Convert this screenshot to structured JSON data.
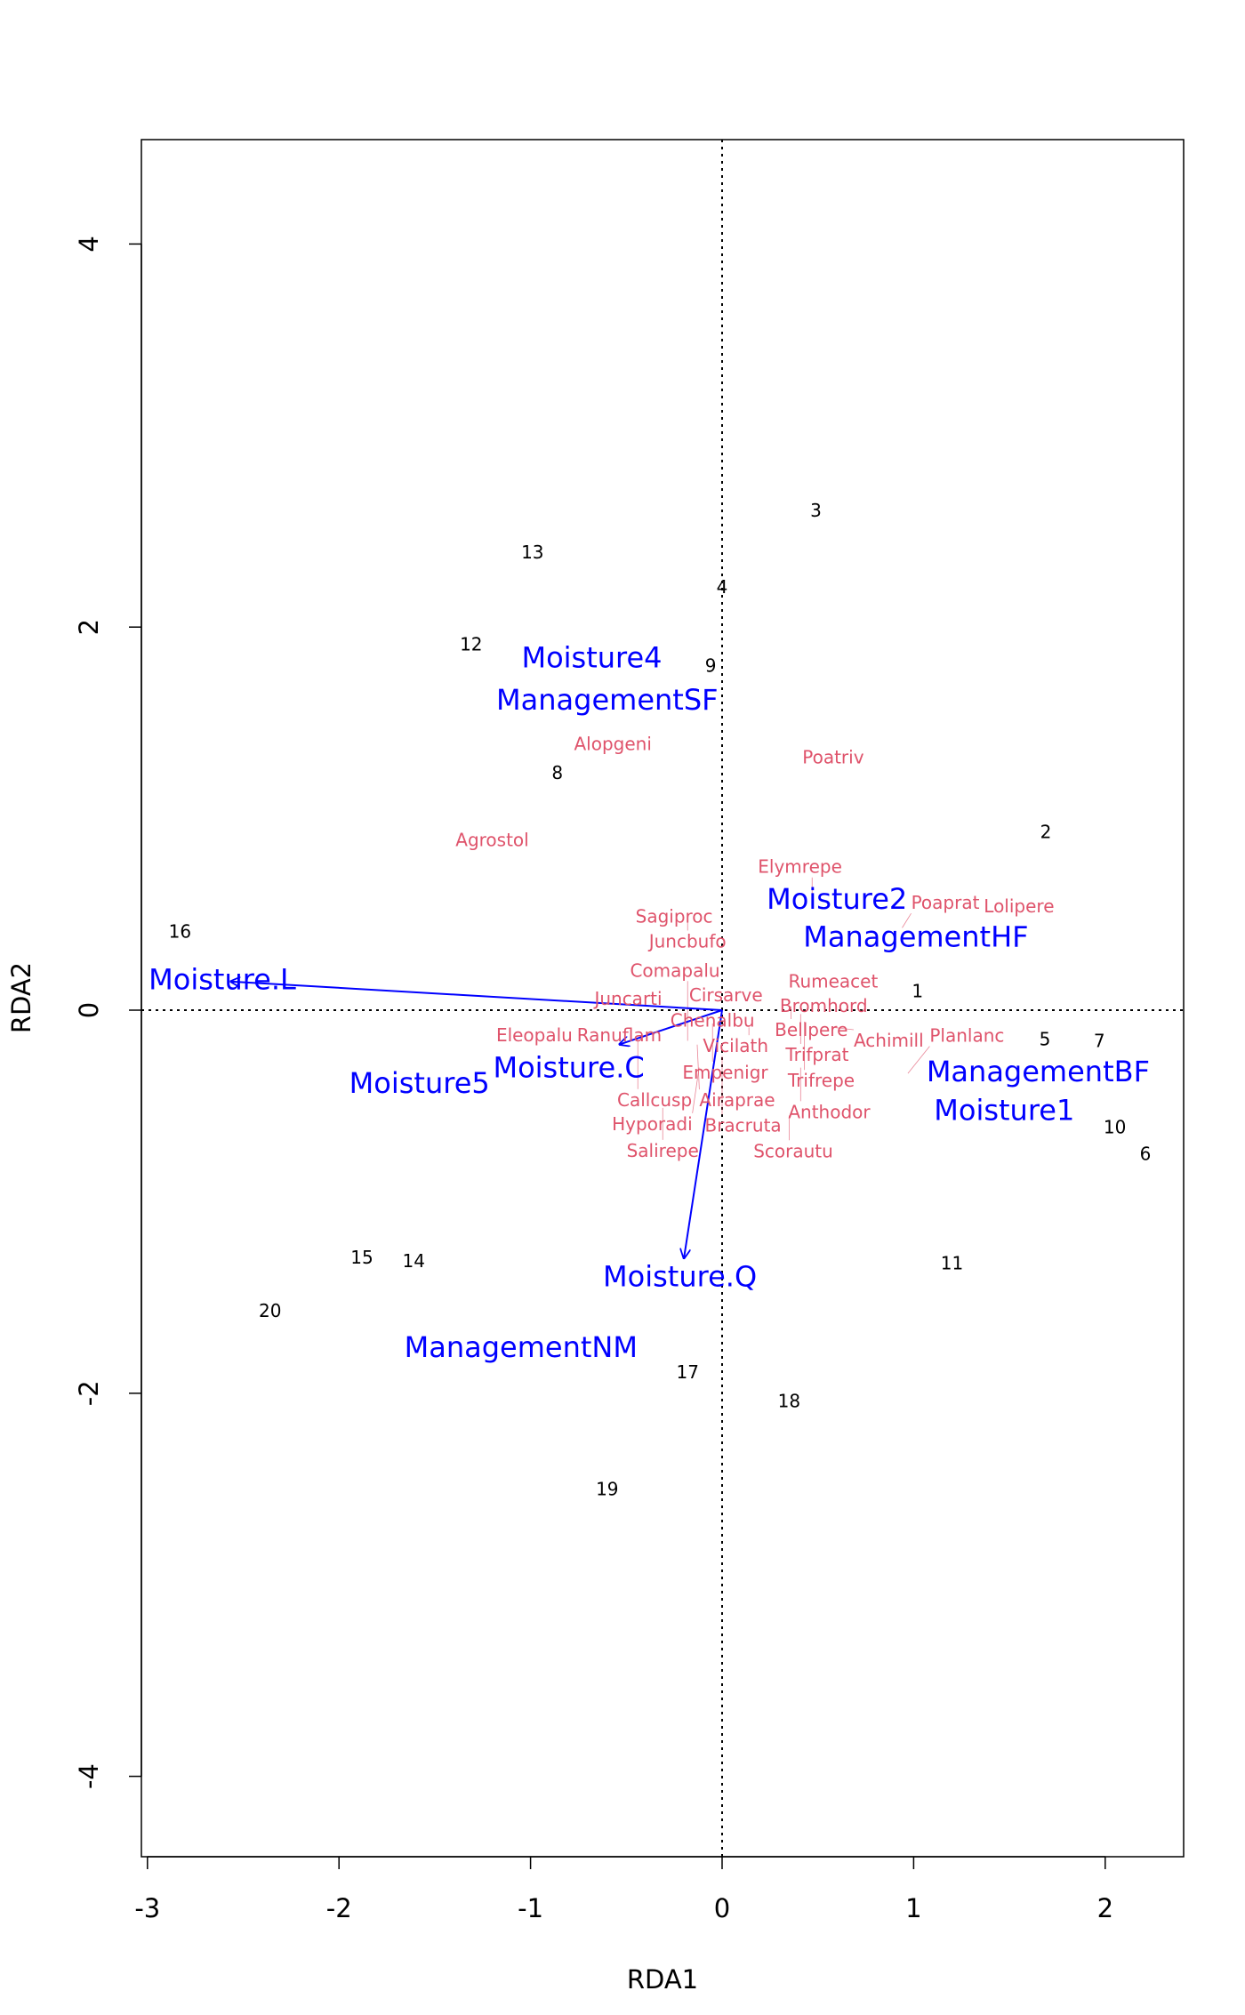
{
  "chart_data": {
    "type": "scatter",
    "title": "",
    "xlabel": "RDA1",
    "ylabel": "RDA2",
    "xlim": [
      -3.03,
      2.42
    ],
    "ylim": [
      -4.45,
      4.49
    ],
    "xticks": [
      -3,
      -2,
      -1,
      0,
      1,
      2
    ],
    "yticks": [
      -4,
      -2,
      0,
      2,
      4
    ],
    "grid": false,
    "colors": {
      "sites": "#000000",
      "species": "#DF536B",
      "constraints": "#0000FF"
    },
    "sites": [
      {
        "label": "1",
        "x": 1.02,
        "y": 0.1
      },
      {
        "label": "2",
        "x": 1.69,
        "y": 0.93
      },
      {
        "label": "3",
        "x": 0.49,
        "y": 2.61
      },
      {
        "label": "4",
        "x": 0.0,
        "y": 2.21
      },
      {
        "label": "5",
        "x": 1.72,
        "y": -0.2
      },
      {
        "label": "6",
        "x": 2.21,
        "y": -0.75
      },
      {
        "label": "7",
        "x": 1.97,
        "y": -0.16
      },
      {
        "label": "8",
        "x": -0.86,
        "y": 1.24
      },
      {
        "label": "9",
        "x": -0.06,
        "y": 1.8
      },
      {
        "label": "10",
        "x": 2.05,
        "y": -0.61
      },
      {
        "label": "11",
        "x": 1.2,
        "y": -1.32
      },
      {
        "label": "12",
        "x": -1.31,
        "y": 1.91
      },
      {
        "label": "13",
        "x": -0.99,
        "y": 2.39
      },
      {
        "label": "14",
        "x": -1.61,
        "y": -1.31
      },
      {
        "label": "15",
        "x": -1.88,
        "y": -1.29
      },
      {
        "label": "16",
        "x": -2.83,
        "y": 0.41
      },
      {
        "label": "17",
        "x": -0.18,
        "y": -1.89
      },
      {
        "label": "18",
        "x": 0.35,
        "y": -2.04
      },
      {
        "label": "19",
        "x": -0.6,
        "y": -2.5
      },
      {
        "label": "20",
        "x": -2.36,
        "y": -1.57
      }
    ],
    "species": [
      {
        "label": "Alopgeni",
        "x": -0.57,
        "y": 1.39
      },
      {
        "label": "Poatriv",
        "x": 0.58,
        "y": 1.32
      },
      {
        "label": "Agrostol",
        "x": -1.2,
        "y": 0.89
      },
      {
        "label": "Sagiproc",
        "x": -0.25,
        "y": 0.49
      },
      {
        "label": "Juncbufo",
        "x": -0.18,
        "y": 0.49
      },
      {
        "label": "Elymrepe",
        "x": 0.47,
        "y": 0.57
      },
      {
        "label": "Poaprat",
        "x": 0.94,
        "y": 0.43
      },
      {
        "label": "Lolipere",
        "x": 1.55,
        "y": 0.45
      },
      {
        "label": "Rumeacet",
        "x": 0.58,
        "y": 0.15
      },
      {
        "label": "Bromhord",
        "x": 0.53,
        "y": 0.08
      },
      {
        "label": "Cirsarve",
        "x": 0.02,
        "y": 0.08
      },
      {
        "label": "Juncarti",
        "x": -0.49,
        "y": 0.06
      },
      {
        "label": "Chenalbu",
        "x": -0.05,
        "y": 0.04
      },
      {
        "label": "Bellpere",
        "x": 0.36,
        "y": 0.02
      },
      {
        "label": "Trifprat",
        "x": 0.41,
        "y": -0.02
      },
      {
        "label": "Trifrepe",
        "x": 0.43,
        "y": -0.06
      },
      {
        "label": "Achimill",
        "x": 0.58,
        "y": -0.09
      },
      {
        "label": "Vicilath",
        "x": 0.14,
        "y": -0.09
      },
      {
        "label": "Empenigr",
        "x": -0.05,
        "y": -0.07
      },
      {
        "label": "Eleopalu",
        "x": -0.98,
        "y": -0.13
      },
      {
        "label": "Ranuflam",
        "x": -0.56,
        "y": -0.13
      },
      {
        "label": "Callcusp",
        "x": -0.44,
        "y": -0.16
      },
      {
        "label": "Comapalu",
        "x": -0.18,
        "y": -0.16
      },
      {
        "label": "Airaprae",
        "x": -0.13,
        "y": -0.18
      },
      {
        "label": "Bracruta",
        "x": 0.0,
        "y": -0.24
      },
      {
        "label": "Hyporadi",
        "x": -0.12,
        "y": -0.3
      },
      {
        "label": "Anthodor",
        "x": 0.41,
        "y": -0.3
      },
      {
        "label": "Planlanc",
        "x": 0.97,
        "y": -0.33
      },
      {
        "label": "Salirepe",
        "x": -0.31,
        "y": -0.51
      },
      {
        "label": "Scorautu",
        "x": 0.35,
        "y": -0.55
      }
    ],
    "biplot": [
      {
        "label": "Moisture.L",
        "x": -2.57,
        "y": 0.15,
        "lx": -3.12,
        "ly": 0.16
      },
      {
        "label": "Moisture.C",
        "x": -0.54,
        "y": -0.18,
        "lx": -0.87,
        "ly": -0.3
      },
      {
        "label": "Moisture.Q",
        "x": -0.2,
        "y": -1.3,
        "lx": -0.22,
        "ly": -1.39
      }
    ],
    "centroids": [
      {
        "label": "Moisture4",
        "x": -0.68,
        "y": 1.84
      },
      {
        "label": "ManagementSF",
        "x": -0.6,
        "y": 1.62
      },
      {
        "label": "Moisture2",
        "x": 0.6,
        "y": 0.58
      },
      {
        "label": "ManagementHF",
        "x": 1.0,
        "y": 0.4
      },
      {
        "label": "Moisture5",
        "x": -1.58,
        "y": -0.38
      },
      {
        "label": "ManagementBF",
        "x": 1.65,
        "y": -0.32
      },
      {
        "label": "Moisture1",
        "x": 1.45,
        "y": -0.49
      },
      {
        "label": "ManagementNM",
        "x": -1.05,
        "y": -1.76
      }
    ]
  }
}
